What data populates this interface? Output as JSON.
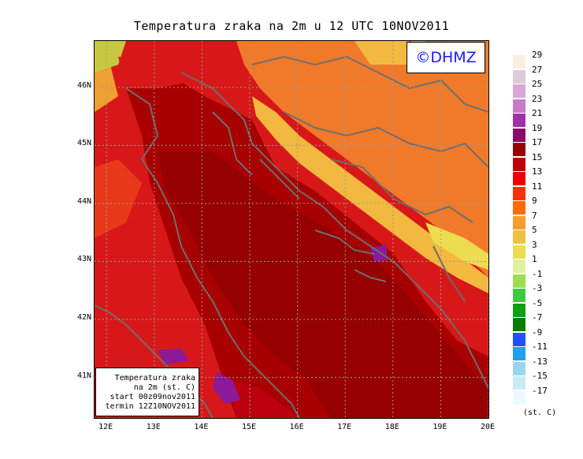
{
  "title": "Temperatura zraka na 2m u 12 UTC 10NOV2011",
  "copyright": "©DHMZ",
  "info": {
    "line1": "Temperatura zraka",
    "line2": "na 2m (st. C)",
    "line3": "start 00z09nov2011",
    "line4": "termin 12Z10NOV2011"
  },
  "axes": {
    "lat_labels": [
      "46N",
      "45N",
      "44N",
      "43N",
      "42N",
      "41N"
    ],
    "lon_labels": [
      "12E",
      "13E",
      "14E",
      "15E",
      "16E",
      "17E",
      "18E",
      "19E",
      "20E"
    ],
    "lat_range": [
      40.3,
      46.8
    ],
    "lon_range": [
      11.75,
      20.0
    ],
    "grid": true
  },
  "legend": {
    "unit": "(st. C)",
    "labels": [
      "29",
      "27",
      "25",
      "23",
      "21",
      "19",
      "17",
      "15",
      "13",
      "11",
      "9",
      "7",
      "5",
      "3",
      "1",
      "-1",
      "-3",
      "-5",
      "-7",
      "-9",
      "-11",
      "-13",
      "-15",
      "-17"
    ],
    "colors": [
      "#fbeee0",
      "#dccbdc",
      "#d8a6d8",
      "#c87ac8",
      "#a030a8",
      "#8a0a6a",
      "#960000",
      "#c00000",
      "#ee0000",
      "#ff3000",
      "#ff6a00",
      "#ff9a30",
      "#f2c040",
      "#eedc50",
      "#e0f0a0",
      "#9ae050",
      "#40c840",
      "#10a010",
      "#0a7a0a",
      "#2050ff",
      "#20a0f0",
      "#9ad6ee",
      "#c8ecf8",
      "#eafafe"
    ]
  },
  "colors": {
    "sea": "#a80000",
    "coast_land": "#d81818",
    "inland": "#f07a2a",
    "mountain": "#f2b840",
    "warm_sea": "#bc0010",
    "hot_spot": "#8a1a9a",
    "border": "#6e6e6e"
  }
}
